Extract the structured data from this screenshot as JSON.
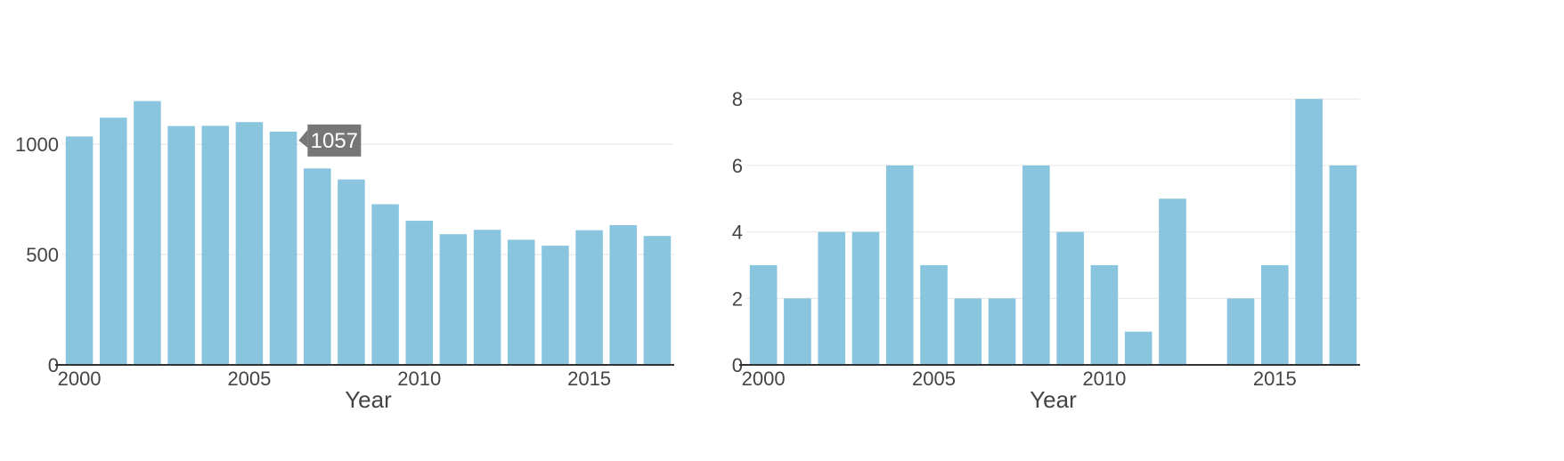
{
  "colors": {
    "bar": "#89c5df",
    "grid": "#e6e6e6",
    "axis": "#333333",
    "text": "#444444",
    "tooltip_bg": "#767676",
    "tooltip_text": "#ffffff",
    "background": "#ffffff"
  },
  "chart_data": [
    {
      "type": "bar",
      "xlabel": "Year",
      "ylabel": "",
      "x": [
        2000,
        2001,
        2002,
        2003,
        2004,
        2005,
        2006,
        2007,
        2008,
        2009,
        2010,
        2011,
        2012,
        2013,
        2014,
        2015,
        2016,
        2017
      ],
      "values": [
        1035,
        1120,
        1195,
        1082,
        1083,
        1100,
        1057,
        890,
        840,
        728,
        653,
        592,
        612,
        567,
        540,
        610,
        633,
        584
      ],
      "xticks": [
        "2000",
        "2005",
        "2010",
        "2015"
      ],
      "yticks": [
        "0",
        "500",
        "1000"
      ],
      "ylim": [
        0,
        1250
      ],
      "grid": true,
      "tooltip": {
        "year": 2006,
        "label": "1057"
      }
    },
    {
      "type": "bar",
      "xlabel": "Year",
      "ylabel": "",
      "x": [
        2000,
        2001,
        2002,
        2003,
        2004,
        2005,
        2006,
        2007,
        2008,
        2009,
        2010,
        2011,
        2012,
        2013,
        2014,
        2015,
        2016,
        2017
      ],
      "values": [
        3,
        2,
        4,
        4,
        6,
        3,
        2,
        2,
        6,
        4,
        3,
        1,
        5,
        0,
        2,
        3,
        8,
        6
      ],
      "xticks": [
        "2000",
        "2005",
        "2010",
        "2015"
      ],
      "yticks": [
        "0",
        "2",
        "4",
        "6",
        "8"
      ],
      "ylim": [
        0,
        8.3
      ],
      "grid": true
    }
  ]
}
